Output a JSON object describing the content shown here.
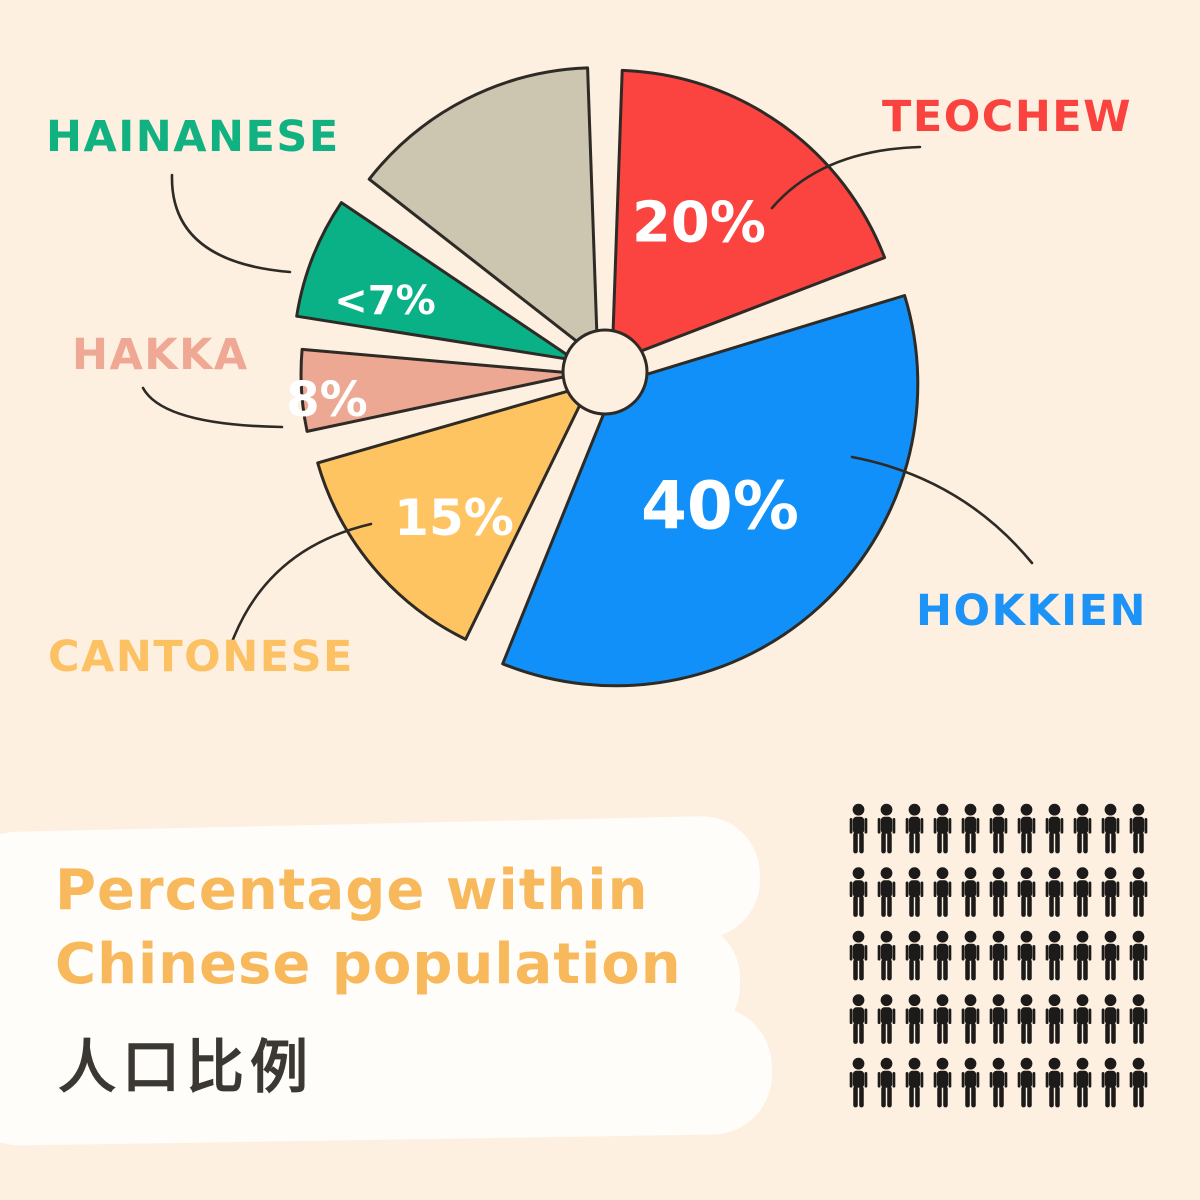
{
  "title": {
    "line1": "Percentage within",
    "line2": "Chinese population",
    "subtitle_cjk": "人口比例"
  },
  "colors": {
    "background": "#fdf0e0",
    "outline": "#2e2a26",
    "value_text": "#ffffff",
    "title_orange": "#f8b85c",
    "subtitle_dark": "#3b3833",
    "person_icon": "#1d1b1a",
    "brush_white": "#fffdf9"
  },
  "icon_grid": {
    "rows": 5,
    "cols": 11,
    "icon_name": "person-icon"
  },
  "chart_data": {
    "type": "pie",
    "title": "Percentage within Chinese population",
    "subtitle": "人口比例",
    "legend_position": "around-pie",
    "slices": [
      {
        "name": "TEOCHEW",
        "value": 20,
        "value_label": "20%",
        "color": "#fb4340",
        "name_color": "#fa423e"
      },
      {
        "name": "HOKKIEN",
        "value": 40,
        "value_label": "40%",
        "color": "#1090f8",
        "name_color": "#1d93f7"
      },
      {
        "name": "CANTONESE",
        "value": 15,
        "value_label": "15%",
        "color": "#fec462",
        "name_color": "#fbc163"
      },
      {
        "name": "HAKKA",
        "value": 8,
        "value_label": "8%",
        "color": "#eda893",
        "name_color": "#efa893"
      },
      {
        "name": "HAINANESE",
        "value": 7,
        "value_label": "<7%",
        "color": "#0ab187",
        "name_color": "#12b182"
      },
      {
        "name": "",
        "value": 10,
        "value_label": "",
        "color": "#ccc6b1",
        "name_color": ""
      }
    ],
    "layout": {
      "center": [
        605,
        372
      ],
      "hole_radius": 42,
      "pad_deg": 2,
      "drawn": [
        {
          "start": 0,
          "end": 71,
          "explode": 12,
          "r": 292,
          "label": [
            699,
            223
          ],
          "label_size": 56
        },
        {
          "start": 71,
          "end": 204,
          "explode": 16,
          "r": 302,
          "label": [
            720,
            506
          ],
          "label_size": 66
        },
        {
          "start": 204,
          "end": 256,
          "explode": 20,
          "r": 283,
          "label": [
            454,
            518
          ],
          "label_size": 50
        },
        {
          "start": 256,
          "end": 277,
          "explode": 26,
          "r": 278,
          "label": [
            327,
            400
          ],
          "label_size": 48
        },
        {
          "start": 277,
          "end": 306,
          "explode": 32,
          "r": 282,
          "label": [
            385,
            301
          ],
          "label_size": 40
        },
        {
          "start": 306,
          "end": 360,
          "explode": 16,
          "r": 290,
          "label": null,
          "label_size": 0
        }
      ],
      "leader_lines": [
        "M 920 147 Q 822 150 772 208",
        "M 852 457 Q 962 478 1032 563",
        "M 232 642 Q 268 548 371 524",
        "M 143 388 Q 163 425 282 427",
        "M 172 175 Q 170 262 290 272"
      ]
    }
  }
}
